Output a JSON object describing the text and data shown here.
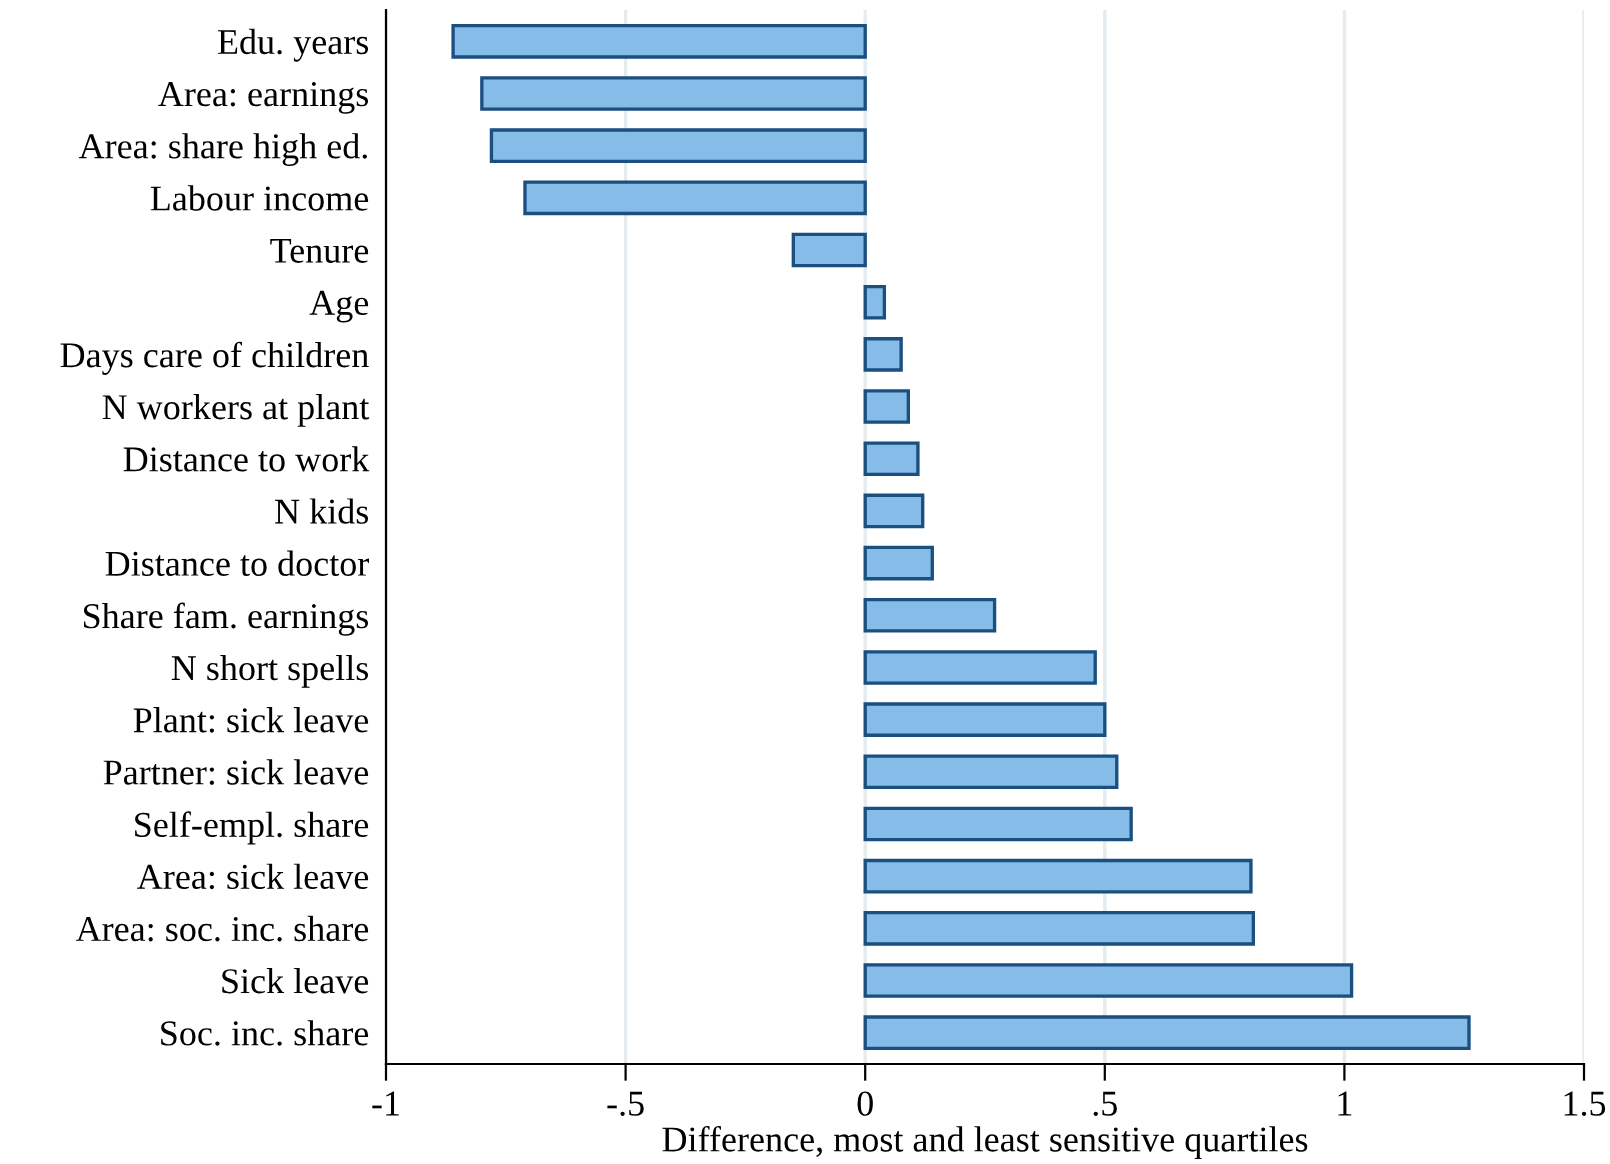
{
  "chart_data": {
    "type": "bar",
    "orientation": "horizontal",
    "xlabel": "Difference, most and least sensitive quartiles",
    "categories": [
      "Edu. years",
      "Area: earnings",
      "Area: share high ed.",
      "Labour income",
      "Tenure",
      "Age",
      "Days care of children",
      "N workers at plant",
      "Distance to work",
      "N kids",
      "Distance to doctor",
      "Share fam. earnings",
      "N short spells",
      "Plant: sick leave",
      "Partner: sick leave",
      "Self-empl. share",
      "Area: sick leave",
      "Area: soc. inc. share",
      "Sick leave",
      "Soc. inc. share"
    ],
    "values": [
      -0.86,
      -0.8,
      -0.78,
      -0.71,
      -0.15,
      0.04,
      0.075,
      0.09,
      0.11,
      0.12,
      0.14,
      0.27,
      0.48,
      0.5,
      0.525,
      0.555,
      0.805,
      0.81,
      1.015,
      1.26
    ],
    "color": "#85bde8",
    "xlim": [
      -1,
      1.5
    ],
    "xticks": [
      -1,
      {
        "value": -0.5,
        "label": "-.5"
      },
      0,
      {
        "value": 0.5,
        "label": ".5"
      },
      1,
      1.5
    ],
    "grid": "x"
  }
}
